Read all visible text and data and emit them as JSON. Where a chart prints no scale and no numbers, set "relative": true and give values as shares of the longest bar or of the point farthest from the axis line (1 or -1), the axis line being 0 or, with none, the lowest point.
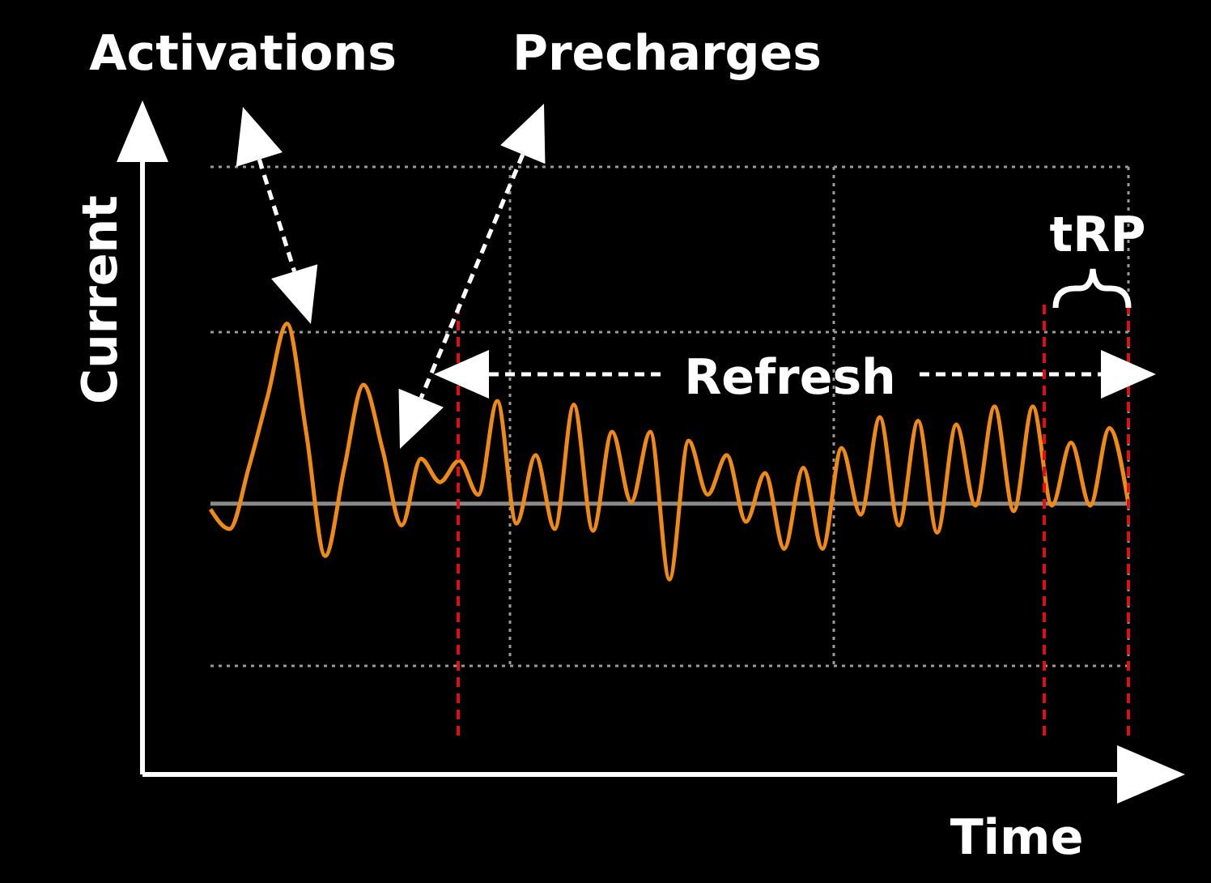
{
  "chart_data": {
    "type": "line",
    "relative": true,
    "xlabel": "Time",
    "ylabel": "Current",
    "grid": true,
    "annotations": [
      "Activations",
      "Precharges",
      "Refresh",
      "tRP"
    ],
    "categories": [
      null,
      null,
      null,
      null,
      null,
      null,
      null,
      null,
      null,
      null,
      null,
      null,
      null,
      null,
      null,
      null,
      null,
      null,
      null,
      null,
      null,
      null,
      null,
      null,
      null,
      null,
      null,
      null,
      null,
      null,
      null,
      null,
      null,
      null,
      null,
      null,
      null,
      null,
      null,
      null,
      null,
      null,
      null,
      null,
      null,
      null,
      null,
      null,
      null
    ],
    "series": [
      {
        "color": "#f08a12",
        "values": [
          -0.03,
          -0.14,
          0.2,
          0.6,
          1.0,
          0.4,
          -0.29,
          0.2,
          0.66,
          0.3,
          -0.12,
          0.25,
          0.12,
          0.24,
          0.05,
          0.57,
          -0.11,
          0.27,
          -0.14,
          0.55,
          -0.15,
          0.4,
          0.01,
          0.4,
          -0.42,
          0.35,
          0.05,
          0.27,
          -0.1,
          0.17,
          -0.25,
          0.2,
          -0.25,
          0.31,
          -0.06,
          0.48,
          -0.12,
          0.46,
          -0.16,
          0.44,
          -0.01,
          0.54,
          -0.04,
          0.54,
          -0.01,
          0.34,
          -0.01,
          0.42,
          0.0
        ]
      }
    ]
  }
}
